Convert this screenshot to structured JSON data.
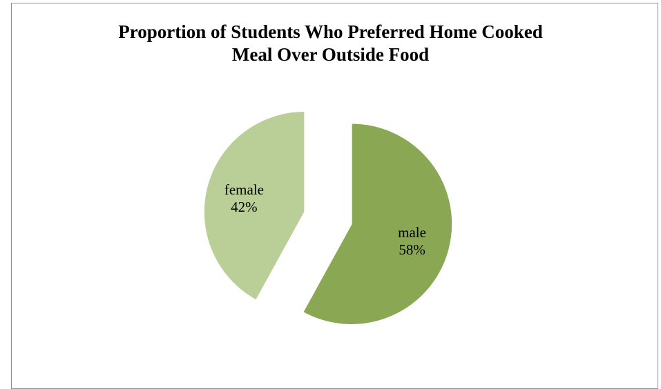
{
  "chart_data": {
    "type": "pie",
    "title_lines": [
      "Proportion of Students Who Preferred Home Cooked",
      "Meal Over Outside Food"
    ],
    "slices": [
      {
        "label": "male",
        "value": 58,
        "display": "58%",
        "color": "#8aa754",
        "exploded": true
      },
      {
        "label": "female",
        "value": 42,
        "display": "42%",
        "color": "#b9cf97",
        "exploded": true
      }
    ],
    "legend": "none"
  }
}
